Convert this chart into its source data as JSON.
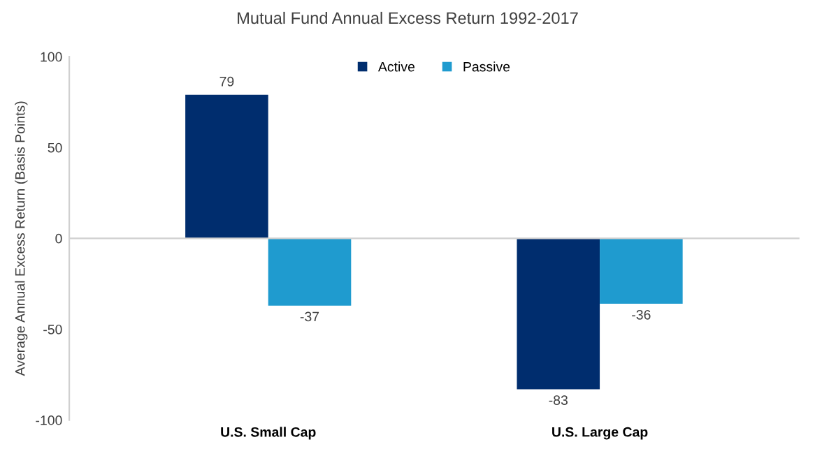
{
  "chart_data": {
    "type": "bar",
    "title": "Mutual Fund Annual Excess Return 1992-2017",
    "ylabel": "Average Annual Excess Return (Basis Points)",
    "categories": [
      "U.S. Small Cap",
      "U.S. Large Cap"
    ],
    "series": [
      {
        "name": "Active",
        "color": "#002d6e",
        "values": [
          79,
          -83
        ]
      },
      {
        "name": "Passive",
        "color": "#1f9bcf",
        "values": [
          -37,
          -36
        ]
      }
    ],
    "ylim": [
      -100,
      100
    ],
    "yticks": [
      -100,
      -50,
      0,
      50,
      100
    ],
    "data_labels": true,
    "legend": "top"
  }
}
